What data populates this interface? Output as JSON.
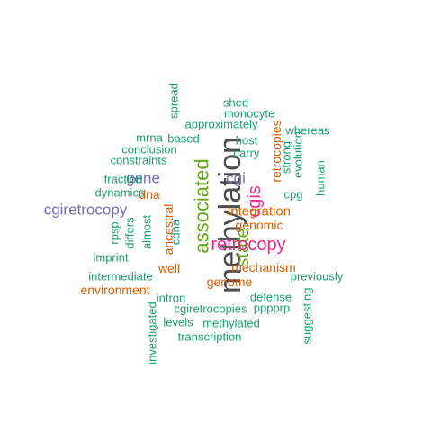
{
  "colors": {
    "dark_gray": "#4d4d4d",
    "green": "#1b9e77",
    "orange": "#d95f02",
    "purple": "#7570b3",
    "magenta": "#e7298a",
    "olive": "#66a61e"
  },
  "words": [
    {
      "text": "methylation",
      "color": "dark_gray",
      "rotated": true
    },
    {
      "text": "associated",
      "color": "olive",
      "rotated": true
    },
    {
      "text": "state",
      "color": "olive",
      "rotated": true
    },
    {
      "text": "cgis",
      "color": "magenta",
      "rotated": true
    },
    {
      "text": "retrocopy",
      "color": "magenta",
      "rotated": false
    },
    {
      "text": "cgiretrocopy",
      "color": "purple",
      "rotated": false
    },
    {
      "text": "gene",
      "color": "purple",
      "rotated": false
    },
    {
      "text": "cgi",
      "color": "purple",
      "rotated": false
    },
    {
      "text": "integration",
      "color": "orange",
      "rotated": false
    },
    {
      "text": "genomic",
      "color": "orange",
      "rotated": false
    },
    {
      "text": "mechanism",
      "color": "orange",
      "rotated": false
    },
    {
      "text": "genome",
      "color": "orange",
      "rotated": false
    },
    {
      "text": "environment",
      "color": "orange",
      "rotated": false
    },
    {
      "text": "well",
      "color": "orange",
      "rotated": false
    },
    {
      "text": "dna",
      "color": "orange",
      "rotated": false
    },
    {
      "text": "ancestral",
      "color": "orange",
      "rotated": true
    },
    {
      "text": "retrocopies",
      "color": "orange",
      "rotated": true
    },
    {
      "text": "shed",
      "color": "green",
      "rotated": false
    },
    {
      "text": "monocyte",
      "color": "green",
      "rotated": false
    },
    {
      "text": "approximately",
      "color": "green",
      "rotated": false
    },
    {
      "text": "spread",
      "color": "green",
      "rotated": true
    },
    {
      "text": "mrna",
      "color": "green",
      "rotated": false
    },
    {
      "text": "based",
      "color": "green",
      "rotated": false
    },
    {
      "text": "host",
      "color": "green",
      "rotated": false
    },
    {
      "text": "whereas",
      "color": "green",
      "rotated": false
    },
    {
      "text": "conclusion",
      "color": "green",
      "rotated": false
    },
    {
      "text": "constraints",
      "color": "green",
      "rotated": false
    },
    {
      "text": "carry",
      "color": "green",
      "rotated": false
    },
    {
      "text": "strong",
      "color": "green",
      "rotated": true
    },
    {
      "text": "evolution",
      "color": "green",
      "rotated": true
    },
    {
      "text": "human",
      "color": "green",
      "rotated": true
    },
    {
      "text": "cpg",
      "color": "green",
      "rotated": false
    },
    {
      "text": "fraction",
      "color": "green",
      "rotated": false
    },
    {
      "text": "dynamics",
      "color": "green",
      "rotated": false
    },
    {
      "text": "rpsp",
      "color": "green",
      "rotated": true
    },
    {
      "text": "differs",
      "color": "green",
      "rotated": true
    },
    {
      "text": "almost",
      "color": "green",
      "rotated": true
    },
    {
      "text": "cdna",
      "color": "green",
      "rotated": true
    },
    {
      "text": "imprint",
      "color": "green",
      "rotated": false
    },
    {
      "text": "intermediate",
      "color": "green",
      "rotated": false
    },
    {
      "text": "previously",
      "color": "green",
      "rotated": false
    },
    {
      "text": "intron",
      "color": "green",
      "rotated": false
    },
    {
      "text": "defense",
      "color": "green",
      "rotated": false
    },
    {
      "text": "pppprp",
      "color": "green",
      "rotated": false
    },
    {
      "text": "cgiretrocopies",
      "color": "green",
      "rotated": false
    },
    {
      "text": "investigated",
      "color": "green",
      "rotated": true
    },
    {
      "text": "levels",
      "color": "green",
      "rotated": false
    },
    {
      "text": "methylated",
      "color": "green",
      "rotated": false
    },
    {
      "text": "suggesting",
      "color": "green",
      "rotated": true
    },
    {
      "text": "transcription",
      "color": "green",
      "rotated": false
    }
  ]
}
